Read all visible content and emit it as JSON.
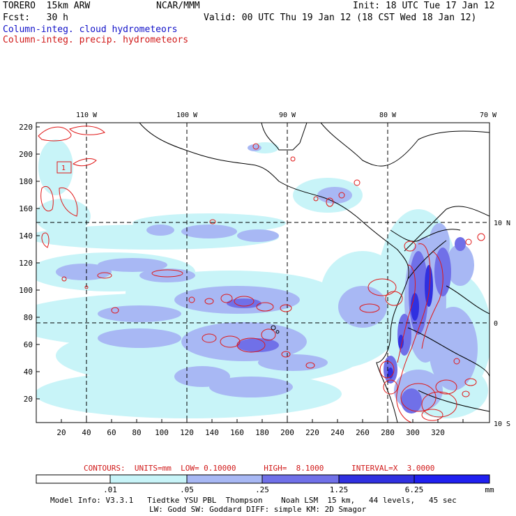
{
  "header": {
    "model": "TORERO  15km ARW",
    "center": "NCAR/MMM",
    "init": "Init: 18 UTC Tue 17 Jan 12",
    "fcst": "Fcst:   30 h",
    "valid": "Valid: 00 UTC Thu 19 Jan 12 (18 CST Wed 18 Jan 12)",
    "field1": "Column-integ. cloud hydrometeors",
    "field2": "Column-integ. precip. hydrometeors"
  },
  "map": {
    "lon_labels": [
      "110 W",
      "100 W",
      "90 W",
      "80 W",
      "70 W"
    ],
    "lat_labels": [
      "10 N",
      "0",
      "10 S"
    ],
    "x_ticks": [
      "20",
      "40",
      "60",
      "80",
      "100",
      "120",
      "140",
      "160",
      "180",
      "200",
      "220",
      "240",
      "260",
      "280",
      "300",
      "320"
    ],
    "y_ticks": [
      "220",
      "200",
      "180",
      "160",
      "140",
      "120",
      "100",
      "80",
      "60",
      "40",
      "20"
    ],
    "contour_label": "1",
    "colors": {
      "light": "#c8f4f8",
      "pale": "#a8b8f4",
      "mid": "#7070e8",
      "dark": "#3030e0",
      "contour": "#e01818"
    }
  },
  "footer": {
    "contours": "CONTOURS:  UNITS=mm  LOW= 0.10000      HIGH=  8.1000      INTERVAL=X  3.0000",
    "colorbar_labels": [
      ".01",
      ".05",
      ".25",
      "1.25",
      "6.25"
    ],
    "colorbar_unit": "mm",
    "colorbar_colors": [
      "#ffffff",
      "#c8f4f8",
      "#a8b8f4",
      "#7070e8",
      "#3030e0",
      "#2020f0"
    ],
    "info1": "Model Info: V3.3.1   Tiedtke YSU PBL  Thompson    Noah LSM  15 km,   44 levels,   45 sec",
    "info2": "LW: Godd SW: Goddard DIFF: simple KM: 2D Smagor"
  }
}
